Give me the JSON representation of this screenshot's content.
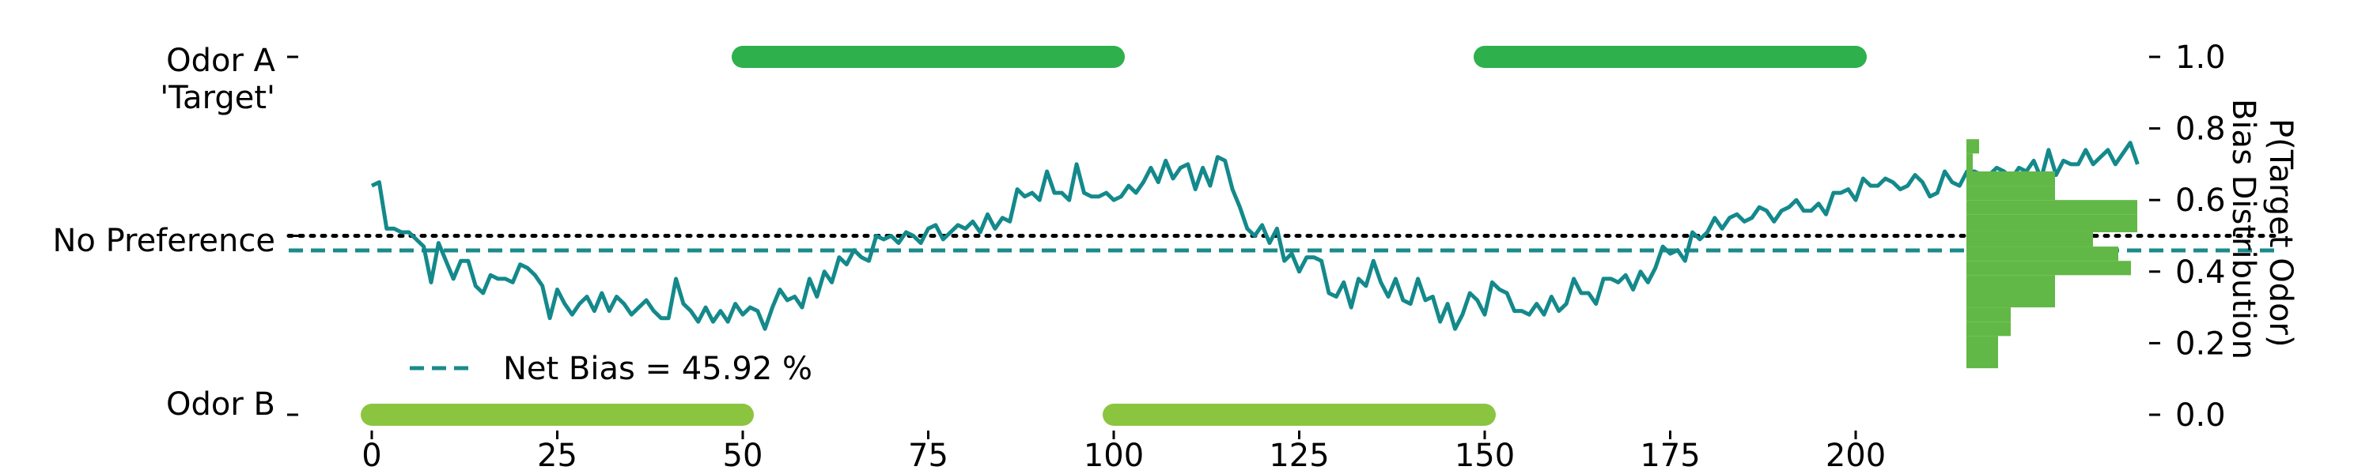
{
  "chart_data": {
    "type": "line",
    "x_ticks": [
      0,
      25,
      50,
      75,
      100,
      125,
      150,
      175,
      200
    ],
    "right_axis": {
      "label_line1": "P(Target Odor)",
      "label_line2": "Bias Distribution",
      "label_line1_color": "#0f8a8a",
      "label_line2_color": "#62b846",
      "ticks": [
        "0.0",
        "0.2",
        "0.4",
        "0.6",
        "0.8",
        "1.0"
      ],
      "tick_values": [
        0.0,
        0.2,
        0.4,
        0.6,
        0.8,
        1.0
      ],
      "ylim": [
        0.0,
        1.0
      ]
    },
    "left_axis": {
      "odor_a_line1": "Odor A",
      "odor_a_line2": "'Target'",
      "odor_a_color": "#169e5a",
      "no_preference": "No Preference",
      "odor_b": "Odor B"
    },
    "odor_a_blocks": [
      [
        50,
        100
      ],
      [
        150,
        200
      ]
    ],
    "odor_b_blocks": [
      [
        0,
        50
      ],
      [
        100,
        150
      ]
    ],
    "odor_a_color": "#2eb04c",
    "odor_b_color": "#8bc540",
    "no_preference_level": 0.5,
    "net_bias": 0.4592,
    "legend": {
      "label": "Net Bias = 45.92 %",
      "color": "#1a8a8a"
    },
    "series": [
      {
        "color": "#14898b",
        "x_start": 0,
        "x_step": 1,
        "values": [
          0.64,
          0.65,
          0.52,
          0.52,
          0.51,
          0.51,
          0.49,
          0.47,
          0.37,
          0.48,
          0.43,
          0.38,
          0.43,
          0.43,
          0.36,
          0.34,
          0.39,
          0.38,
          0.38,
          0.37,
          0.42,
          0.41,
          0.39,
          0.36,
          0.27,
          0.35,
          0.31,
          0.28,
          0.31,
          0.33,
          0.29,
          0.34,
          0.29,
          0.33,
          0.31,
          0.28,
          0.3,
          0.32,
          0.29,
          0.27,
          0.27,
          0.38,
          0.31,
          0.29,
          0.26,
          0.3,
          0.26,
          0.29,
          0.26,
          0.31,
          0.28,
          0.3,
          0.29,
          0.24,
          0.3,
          0.35,
          0.32,
          0.33,
          0.3,
          0.38,
          0.33,
          0.4,
          0.37,
          0.44,
          0.42,
          0.46,
          0.44,
          0.43,
          0.5,
          0.49,
          0.5,
          0.48,
          0.51,
          0.5,
          0.48,
          0.52,
          0.53,
          0.49,
          0.51,
          0.53,
          0.52,
          0.54,
          0.51,
          0.56,
          0.52,
          0.55,
          0.54,
          0.63,
          0.61,
          0.62,
          0.6,
          0.68,
          0.62,
          0.62,
          0.6,
          0.7,
          0.62,
          0.61,
          0.61,
          0.62,
          0.6,
          0.61,
          0.64,
          0.62,
          0.65,
          0.69,
          0.65,
          0.71,
          0.66,
          0.69,
          0.7,
          0.63,
          0.69,
          0.64,
          0.72,
          0.71,
          0.63,
          0.58,
          0.52,
          0.5,
          0.53,
          0.48,
          0.52,
          0.43,
          0.45,
          0.4,
          0.44,
          0.44,
          0.43,
          0.34,
          0.33,
          0.37,
          0.3,
          0.38,
          0.36,
          0.43,
          0.37,
          0.33,
          0.38,
          0.32,
          0.31,
          0.38,
          0.32,
          0.33,
          0.26,
          0.31,
          0.24,
          0.28,
          0.34,
          0.32,
          0.28,
          0.37,
          0.35,
          0.34,
          0.29,
          0.29,
          0.28,
          0.31,
          0.28,
          0.33,
          0.29,
          0.31,
          0.38,
          0.34,
          0.34,
          0.31,
          0.38,
          0.38,
          0.37,
          0.39,
          0.35,
          0.4,
          0.37,
          0.41,
          0.47,
          0.45,
          0.46,
          0.43,
          0.51,
          0.49,
          0.51,
          0.55,
          0.52,
          0.55,
          0.56,
          0.54,
          0.55,
          0.58,
          0.57,
          0.54,
          0.57,
          0.58,
          0.6,
          0.57,
          0.57,
          0.59,
          0.56,
          0.62,
          0.62,
          0.63,
          0.6,
          0.66,
          0.64,
          0.64,
          0.66,
          0.65,
          0.63,
          0.64,
          0.67,
          0.65,
          0.61,
          0.62,
          0.68,
          0.65,
          0.64,
          0.68,
          0.68,
          0.67,
          0.67,
          0.69,
          0.68,
          0.66,
          0.69,
          0.68,
          0.71,
          0.66,
          0.74,
          0.67,
          0.71,
          0.7,
          0.7,
          0.74,
          0.7,
          0.72,
          0.74,
          0.7,
          0.73,
          0.76,
          0.7
        ]
      }
    ],
    "histogram": {
      "color": "#62b846",
      "bins": [
        {
          "low": 0.13,
          "high": 0.17,
          "count": 5
        },
        {
          "low": 0.17,
          "high": 0.22,
          "count": 5
        },
        {
          "low": 0.22,
          "high": 0.26,
          "count": 7
        },
        {
          "low": 0.26,
          "high": 0.3,
          "count": 7
        },
        {
          "low": 0.3,
          "high": 0.34,
          "count": 14
        },
        {
          "low": 0.34,
          "high": 0.39,
          "count": 14
        },
        {
          "low": 0.39,
          "high": 0.43,
          "count": 26
        },
        {
          "low": 0.43,
          "high": 0.47,
          "count": 24
        },
        {
          "low": 0.47,
          "high": 0.51,
          "count": 20
        },
        {
          "low": 0.51,
          "high": 0.56,
          "count": 27
        },
        {
          "low": 0.56,
          "high": 0.6,
          "count": 27
        },
        {
          "low": 0.6,
          "high": 0.64,
          "count": 14
        },
        {
          "low": 0.64,
          "high": 0.68,
          "count": 14
        },
        {
          "low": 0.68,
          "high": 0.73,
          "count": 1
        },
        {
          "low": 0.73,
          "high": 0.77,
          "count": 2
        }
      ]
    },
    "xlim": [
      -8,
      218
    ]
  }
}
